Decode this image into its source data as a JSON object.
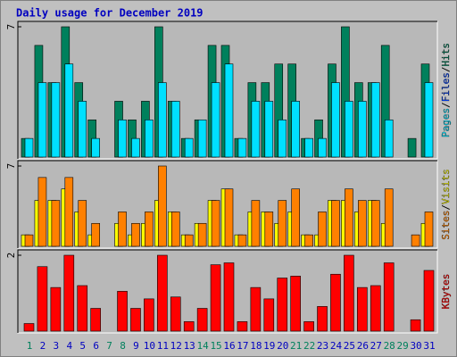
{
  "chart_data": [
    {
      "type": "bar",
      "title": "Daily usage for December 2019",
      "ylim": [
        0,
        7
      ],
      "yticks": [
        7
      ],
      "legend_separator": "/",
      "series": [
        {
          "name": "Hits",
          "color": "#00805c",
          "values": [
            1,
            6,
            4,
            7,
            4,
            2,
            0,
            3,
            2,
            3,
            7,
            3,
            1,
            2,
            6,
            6,
            1,
            4,
            4,
            5,
            5,
            1,
            2,
            5,
            7,
            4,
            4,
            6,
            0,
            1,
            5
          ]
        },
        {
          "name": "Files",
          "color": "#0040ff",
          "values": [
            0,
            0,
            0,
            0,
            0,
            0,
            0,
            0,
            0,
            0,
            0,
            0,
            0,
            0,
            0,
            0,
            0,
            0,
            0,
            0,
            0,
            0,
            0,
            0,
            0,
            0,
            0,
            0,
            0,
            0,
            0
          ]
        },
        {
          "name": "Pages",
          "color": "#00e0ff",
          "values": [
            1,
            4,
            4,
            5,
            3,
            1,
            0,
            2,
            1,
            2,
            4,
            3,
            1,
            2,
            4,
            5,
            1,
            3,
            3,
            2,
            3,
            1,
            1,
            4,
            3,
            3,
            4,
            2,
            0,
            0,
            4
          ]
        }
      ]
    },
    {
      "type": "bar",
      "ylim": [
        0,
        7
      ],
      "yticks": [
        7
      ],
      "legend_separator": "/",
      "series": [
        {
          "name": "Visits",
          "color": "#ffff00",
          "values": [
            1,
            4,
            4,
            5,
            3,
            1,
            0,
            2,
            1,
            2,
            4,
            3,
            1,
            2,
            4,
            5,
            1,
            3,
            3,
            2,
            3,
            1,
            1,
            4,
            4,
            3,
            4,
            2,
            0,
            0,
            2
          ]
        },
        {
          "name": "Sites",
          "color": "#ff8000",
          "values": [
            1,
            6,
            4,
            6,
            4,
            2,
            0,
            3,
            2,
            3,
            7,
            3,
            1,
            2,
            4,
            5,
            1,
            4,
            3,
            4,
            5,
            1,
            3,
            4,
            5,
            4,
            4,
            5,
            0,
            1,
            3
          ]
        }
      ]
    },
    {
      "type": "bar",
      "ylim": [
        0,
        2
      ],
      "yticks": [
        2
      ],
      "categories": [
        1,
        2,
        3,
        4,
        5,
        6,
        7,
        8,
        9,
        10,
        11,
        12,
        13,
        14,
        15,
        16,
        17,
        18,
        19,
        20,
        21,
        22,
        23,
        24,
        25,
        26,
        27,
        28,
        29,
        30,
        31
      ],
      "label_colors": [
        "#00805c",
        "#0000c0",
        "#0000c0",
        "#0000c0",
        "#0000c0",
        "#0000c0",
        "#00805c",
        "#00805c",
        "#0000c0",
        "#0000c0",
        "#0000c0",
        "#0000c0",
        "#0000c0",
        "#00805c",
        "#00805c",
        "#0000c0",
        "#0000c0",
        "#0000c0",
        "#0000c0",
        "#0000c0",
        "#00805c",
        "#00805c",
        "#0000c0",
        "#0000c0",
        "#0000c0",
        "#0000c0",
        "#0000c0",
        "#00805c",
        "#00805c",
        "#0000c0",
        "#0000c0"
      ],
      "series": [
        {
          "name": "KBytes",
          "color": "#ff0000",
          "values": [
            0.2,
            1.7,
            1.15,
            2,
            1.2,
            0.6,
            0,
            1.05,
            0.6,
            0.85,
            2,
            0.9,
            0.25,
            0.6,
            1.75,
            1.8,
            0.25,
            1.15,
            0.85,
            1.4,
            1.45,
            0.25,
            0.65,
            1.5,
            2,
            1.15,
            1.2,
            1.8,
            0,
            0.3,
            1.6
          ]
        }
      ]
    }
  ]
}
